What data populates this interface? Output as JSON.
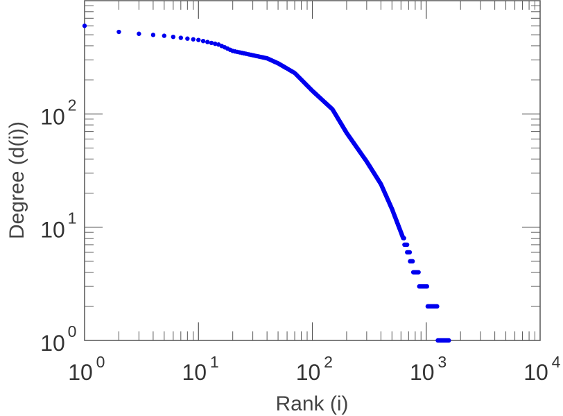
{
  "chart_data": {
    "type": "scatter",
    "xlabel": "Rank (i)",
    "ylabel": "Degree (d(i))",
    "xscale": "log",
    "yscale": "log",
    "xlim": [
      1,
      10000
    ],
    "ylim": [
      1,
      1000
    ],
    "grid": false,
    "point_color": "#0000ee",
    "x_ticks": [
      {
        "base": "10",
        "exp": "0"
      },
      {
        "base": "10",
        "exp": "1"
      },
      {
        "base": "10",
        "exp": "2"
      },
      {
        "base": "10",
        "exp": "3"
      },
      {
        "base": "10",
        "exp": "4"
      }
    ],
    "y_ticks": [
      {
        "base": "10",
        "exp": "0"
      },
      {
        "base": "10",
        "exp": "1"
      },
      {
        "base": "10",
        "exp": "2"
      }
    ],
    "curve": [
      [
        1,
        600
      ],
      [
        2,
        530
      ],
      [
        3,
        510
      ],
      [
        5,
        490
      ],
      [
        7,
        470
      ],
      [
        10,
        450
      ],
      [
        15,
        410
      ],
      [
        20,
        360
      ],
      [
        30,
        330
      ],
      [
        40,
        310
      ],
      [
        50,
        280
      ],
      [
        70,
        230
      ],
      [
        100,
        160
      ],
      [
        150,
        110
      ],
      [
        200,
        68
      ],
      [
        300,
        38
      ],
      [
        400,
        24
      ],
      [
        500,
        14.5
      ],
      [
        600,
        9
      ],
      [
        700,
        6
      ],
      [
        800,
        4
      ],
      [
        900,
        3.3
      ],
      [
        1000,
        2.7
      ],
      [
        1100,
        2.1
      ],
      [
        1200,
        1.7
      ],
      [
        1300,
        1.4
      ],
      [
        1400,
        1.2
      ],
      [
        1500,
        1.0
      ],
      [
        1600,
        1.0
      ]
    ]
  }
}
